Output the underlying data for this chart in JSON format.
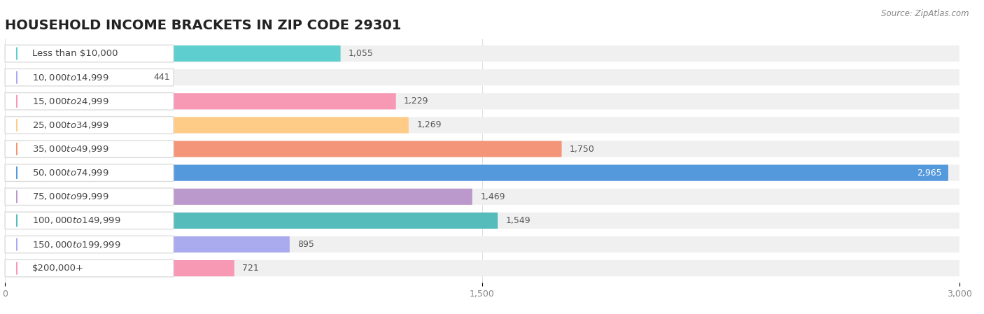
{
  "title": "HOUSEHOLD INCOME BRACKETS IN ZIP CODE 29301",
  "source": "Source: ZipAtlas.com",
  "categories": [
    "Less than $10,000",
    "$10,000 to $14,999",
    "$15,000 to $24,999",
    "$25,000 to $34,999",
    "$35,000 to $49,999",
    "$50,000 to $74,999",
    "$75,000 to $99,999",
    "$100,000 to $149,999",
    "$150,000 to $199,999",
    "$200,000+"
  ],
  "values": [
    1055,
    441,
    1229,
    1269,
    1750,
    2965,
    1469,
    1549,
    895,
    721
  ],
  "bar_colors": [
    "#5ECECE",
    "#AAAAEE",
    "#F799B4",
    "#FFCC88",
    "#F4957A",
    "#5599DD",
    "#BB99CC",
    "#55BBBB",
    "#AAAAEE",
    "#F799B4"
  ],
  "xlim": [
    0,
    3000
  ],
  "xticks": [
    0,
    1500,
    3000
  ],
  "title_fontsize": 14,
  "label_fontsize": 9.5,
  "value_fontsize": 9
}
